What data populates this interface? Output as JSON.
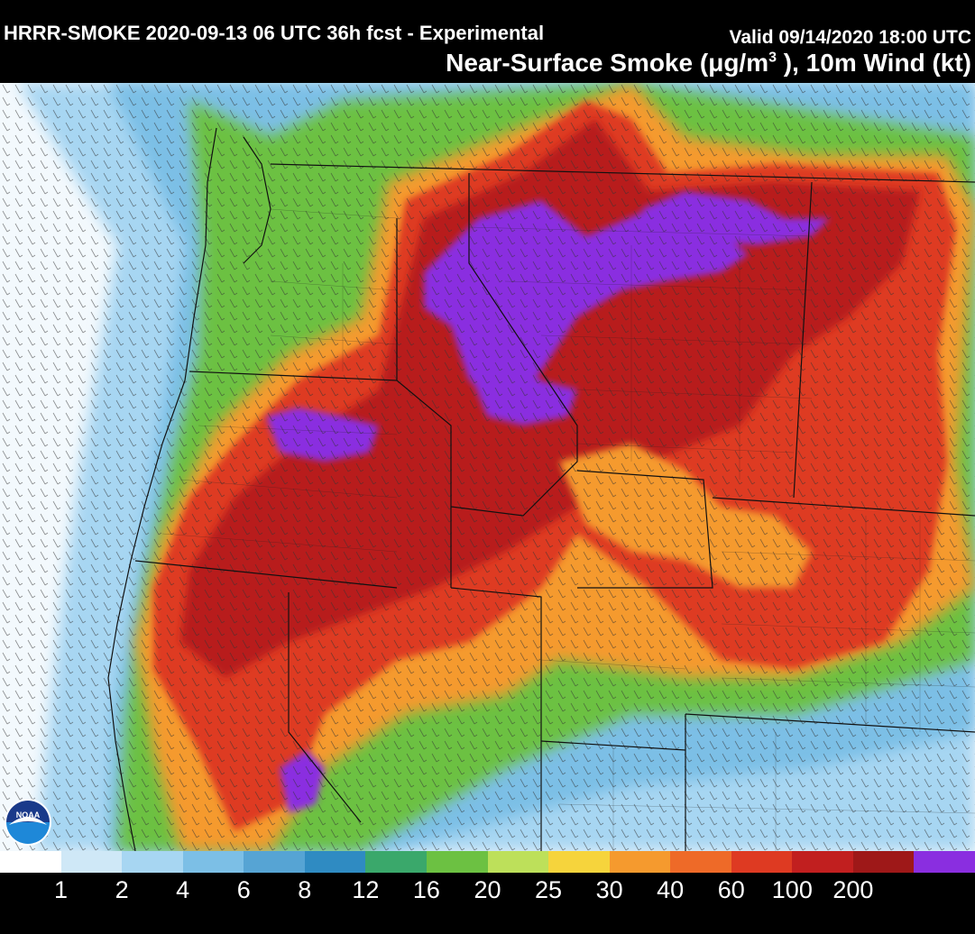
{
  "header": {
    "title": "HRRR-SMOKE 2020-09-13 06 UTC 36h fcst - Experimental",
    "valid": "Valid 09/14/2020 18:00 UTC",
    "subtitle_prefix": "Near-Surface Smoke (",
    "subtitle_unit_mu": "μ",
    "subtitle_unit_rest": "g/m",
    "subtitle_unit_exp": "3",
    "subtitle_suffix": " ), 10m Wind (kt)"
  },
  "logo": {
    "name": "noaa-logo",
    "text": "NOAA",
    "icon": "noaa-seal-icon"
  },
  "colors": {
    "white": "#ffffff",
    "c1": "#cfe8f7",
    "c2": "#a7d6f2",
    "c4": "#7cbfe6",
    "c6": "#56a4d4",
    "c8": "#2f8bc2",
    "c12": "#3aa86b",
    "c16": "#6cc142",
    "c20": "#bde05a",
    "c25": "#f6d43c",
    "c30": "#f59a2e",
    "c40": "#ee6a28",
    "c60": "#de3a22",
    "c100": "#c11f1f",
    "c200": "#9e1818",
    "max": "#8a2ee0",
    "ocean": "#f5fbff",
    "border": "#111111"
  },
  "colorbar": {
    "swatches": [
      "#ffffff",
      "#cfe8f7",
      "#a7d6f2",
      "#7cbfe6",
      "#56a4d4",
      "#2f8bc2",
      "#3aa86b",
      "#6cc142",
      "#bde05a",
      "#f6d43c",
      "#f59a2e",
      "#ee6a28",
      "#de3a22",
      "#c11f1f",
      "#9e1818",
      "#8a2ee0"
    ],
    "labels": [
      "1",
      "2",
      "4",
      "6",
      "8",
      "12",
      "16",
      "20",
      "25",
      "30",
      "40",
      "60",
      "100",
      "200"
    ]
  }
}
